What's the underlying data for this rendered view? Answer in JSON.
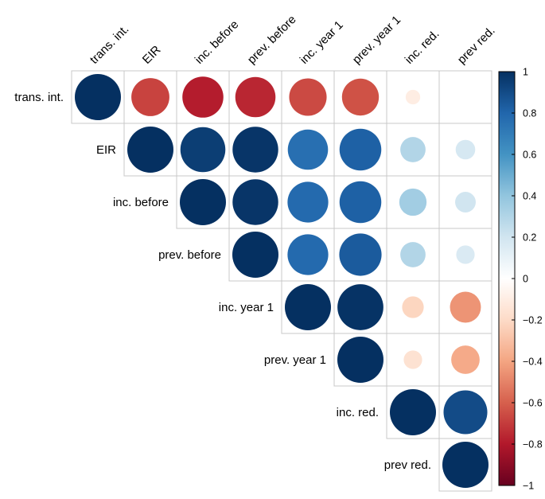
{
  "chart_data": {
    "type": "heatmap",
    "variables": [
      "trans. int.",
      "EIR",
      "inc. before",
      "prev. before",
      "inc. year 1",
      "prev. year 1",
      "inc. red.",
      "prev red."
    ],
    "matrix": [
      [
        1.0,
        -0.68,
        -0.79,
        -0.76,
        -0.66,
        -0.64,
        -0.1,
        0.0
      ],
      [
        -0.68,
        1.0,
        0.95,
        0.98,
        0.76,
        0.82,
        0.3,
        0.18
      ],
      [
        -0.79,
        0.95,
        1.0,
        0.98,
        0.78,
        0.82,
        0.35,
        0.2
      ],
      [
        -0.76,
        0.98,
        0.98,
        1.0,
        0.78,
        0.84,
        0.3,
        0.16
      ],
      [
        -0.66,
        0.76,
        0.78,
        0.78,
        1.0,
        0.99,
        -0.22,
        -0.45
      ],
      [
        -0.64,
        0.82,
        0.82,
        0.84,
        0.99,
        1.0,
        -0.16,
        -0.38
      ],
      [
        -0.1,
        0.3,
        0.35,
        0.3,
        -0.22,
        -0.16,
        1.0,
        0.9
      ],
      [
        0.0,
        0.18,
        0.2,
        0.16,
        -0.45,
        -0.38,
        0.9,
        1.0
      ]
    ],
    "legend": {
      "ticks": [
        1,
        0.8,
        0.6,
        0.4,
        0.2,
        0,
        -0.2,
        -0.4,
        -0.6,
        -0.8,
        -1
      ],
      "tick_labels": [
        "1",
        "0.8",
        "0.6",
        "0.4",
        "0.2",
        "0",
        "−0.2",
        "−0.4",
        "−0.6",
        "−0.8",
        "−1"
      ],
      "range": [
        -1,
        1
      ],
      "placement": "right"
    },
    "palette": [
      "#67001F",
      "#B2182B",
      "#D6604D",
      "#F4A582",
      "#FDDBC7",
      "#FFFFFF",
      "#D1E5F0",
      "#92C5DE",
      "#4393C3",
      "#2166AC",
      "#053061"
    ]
  }
}
